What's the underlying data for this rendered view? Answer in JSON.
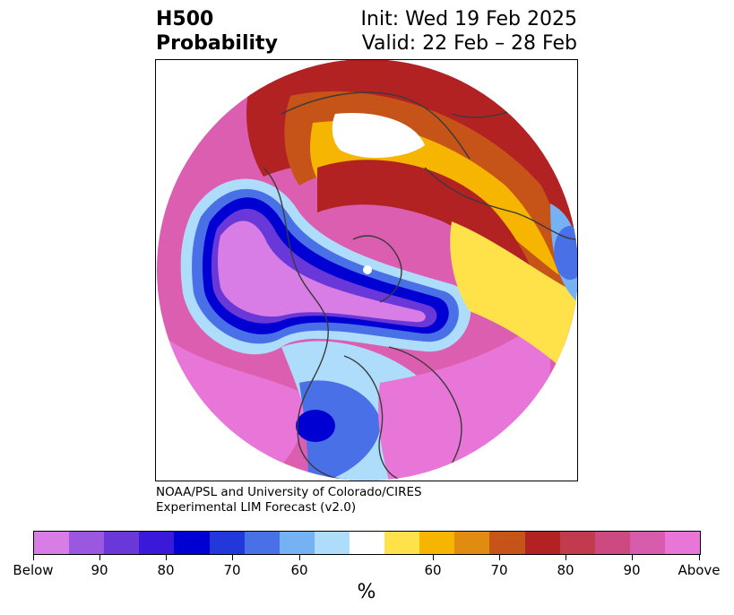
{
  "header": {
    "title_line1": "H500",
    "title_line2": "Probability",
    "init": "Init: Wed 19 Feb 2025",
    "valid": "Valid: 22 Feb – 28 Feb"
  },
  "credit": {
    "line1": "NOAA/PSL and University of Colorado/CIRES",
    "line2": "Experimental LIM Forecast (v2.0)"
  },
  "colorbar": {
    "colors": [
      "#d87de6",
      "#9b57e0",
      "#6a38d8",
      "#3a19d8",
      "#0000d2",
      "#2238da",
      "#4a70e8",
      "#74b2f4",
      "#aedcfb",
      "#ffffff",
      "#ffe24a",
      "#f5b500",
      "#e08c10",
      "#c65418",
      "#b22222",
      "#c23a4e",
      "#cc4a80",
      "#d85cac",
      "#e876d8"
    ],
    "tick_labels": [
      "Below",
      "90",
      "80",
      "70",
      "60",
      "60",
      "70",
      "80",
      "90",
      "Above"
    ],
    "unit": "%"
  },
  "map": {
    "land_outline_color": "#3a3a3a",
    "field_colors": {
      "below_strong": "#0000d2",
      "below_mid": "#4a70e8",
      "below_weak": "#aedcfb",
      "below_extreme": "#d87de6",
      "above_weak": "#ffe24a",
      "above_mid": "#e08c10",
      "above_strong": "#b22222",
      "above_extreme": "#e876d8"
    }
  }
}
